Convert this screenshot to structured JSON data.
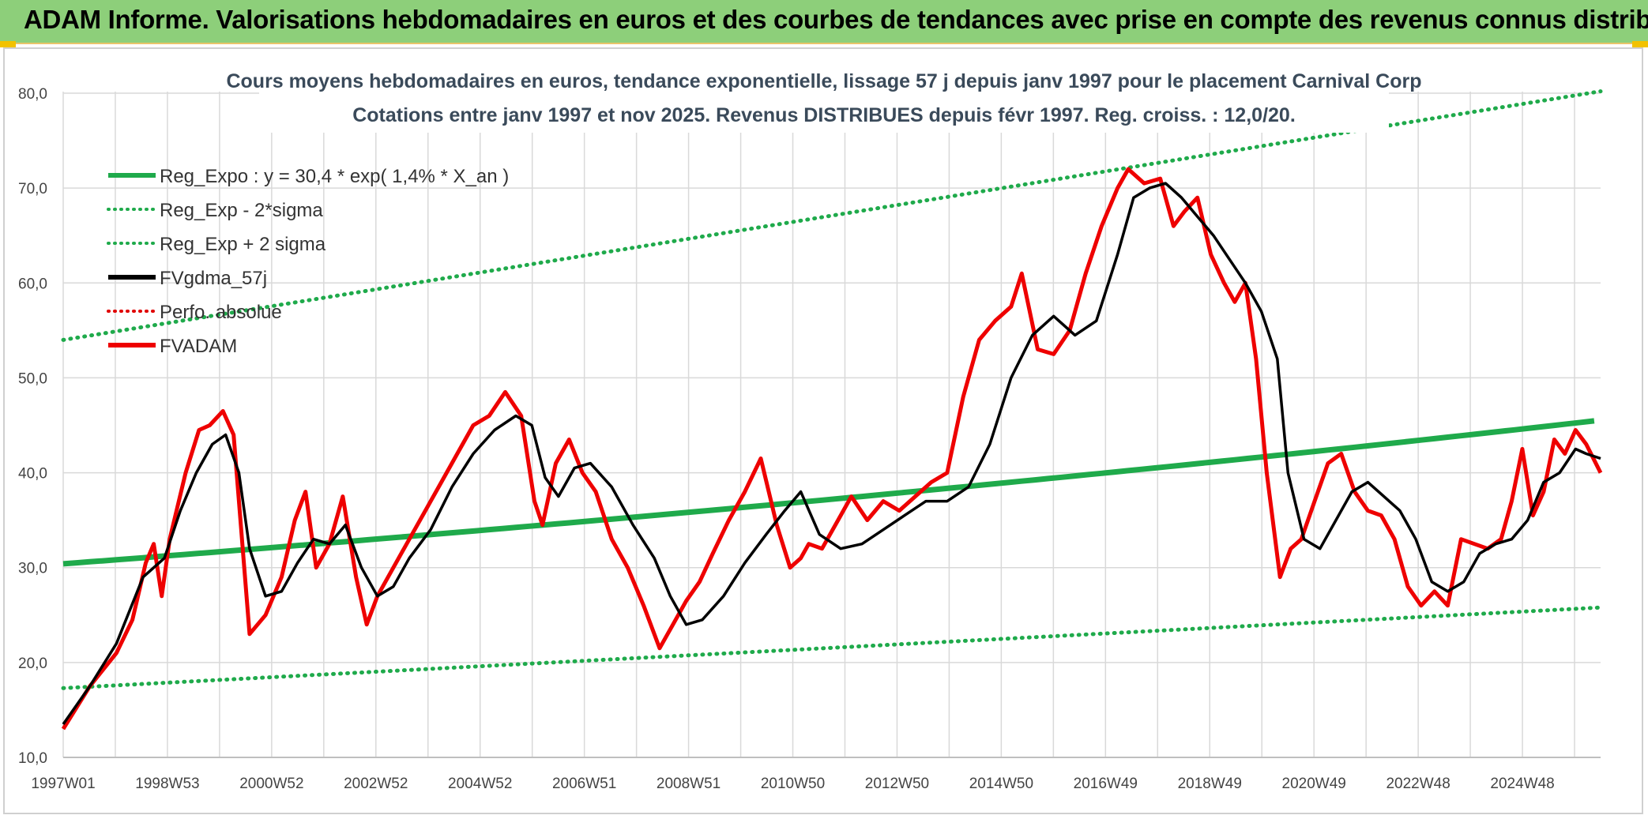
{
  "header": {
    "title": "ADAM Informe. Valorisations hebdomadaires en euros et des courbes de tendances avec prise en compte des revenus connus distribués"
  },
  "colors": {
    "reg_expo": "#1faa4b",
    "reg_band": "#1faa4b",
    "fvgdma": "#000000",
    "perfo": "#e00000",
    "fvadam": "#ee0000",
    "banner": "#8dcf7a"
  },
  "chart_data": {
    "type": "line",
    "title_lines": [
      "Cours moyens hebdomadaires en euros, tendance exponentielle, lissage 57 j depuis janv 1997 pour le placement Carnival Corp",
      "Cotations entre janv 1997 et nov 2025. Revenus DISTRIBUES depuis févr 1997. Reg. croiss. : 12,0/20."
    ],
    "ylim": [
      10,
      80
    ],
    "xlim": [
      1997.0,
      2025.87
    ],
    "y_ticks": [
      "10,0",
      "20,0",
      "30,0",
      "40,0",
      "50,0",
      "60,0",
      "70,0",
      "80,0"
    ],
    "x_ticks": [
      "1997W01",
      "1998W53",
      "2000W52",
      "2002W52",
      "2004W52",
      "2006W51",
      "2008W51",
      "2010W50",
      "2012W50",
      "2014W50",
      "2016W49",
      "2018W49",
      "2020W49",
      "2022W48",
      "2024W48"
    ],
    "grid": true,
    "legend": {
      "position": "top-left",
      "entries": [
        {
          "name": "Reg_Expo : y = 30,4 * exp( 1,4% *  X_an )",
          "style": "solid",
          "color": "#1faa4b"
        },
        {
          "name": "Reg_Exp - 2*sigma",
          "style": "dotted",
          "color": "#1faa4b"
        },
        {
          "name": "Reg_Exp + 2 sigma",
          "style": "dotted",
          "color": "#1faa4b"
        },
        {
          "name": "FVgdma_57j",
          "style": "solid",
          "color": "#000000"
        },
        {
          "name": "Perfo. absolue",
          "style": "dotted",
          "color": "#e00000"
        },
        {
          "name": "FVADAM",
          "style": "solid",
          "color": "#ee0000"
        }
      ]
    },
    "regression": {
      "a": 30.4,
      "rate": 0.014,
      "x0": 1997.0
    },
    "upper_band": [
      [
        1997.0,
        54.0
      ],
      [
        2025.87,
        80.2
      ]
    ],
    "lower_band": [
      [
        1997.0,
        17.3
      ],
      [
        2025.87,
        25.8
      ]
    ],
    "series": [
      {
        "name": "FVADAM",
        "x": [
          1997.0,
          1997.5,
          1998.0,
          1998.3,
          1998.55,
          1998.7,
          1998.85,
          1999.0,
          1999.3,
          1999.55,
          1999.75,
          2000.0,
          2000.2,
          2000.5,
          2000.8,
          2001.1,
          2001.35,
          2001.55,
          2001.75,
          2002.0,
          2002.25,
          2002.5,
          2002.7,
          2002.9,
          2003.2,
          2003.5,
          2003.8,
          2004.1,
          2004.4,
          2004.7,
          2005.0,
          2005.3,
          2005.6,
          2005.85,
          2006.0,
          2006.25,
          2006.5,
          2006.75,
          2007.0,
          2007.3,
          2007.6,
          2007.9,
          2008.2,
          2008.45,
          2008.7,
          2008.95,
          2009.2,
          2009.5,
          2009.8,
          2010.1,
          2010.4,
          2010.65,
          2010.85,
          2011.0,
          2011.25,
          2011.55,
          2011.8,
          2012.1,
          2012.4,
          2012.7,
          2013.0,
          2013.3,
          2013.6,
          2013.9,
          2014.2,
          2014.5,
          2014.8,
          2015.0,
          2015.3,
          2015.6,
          2015.9,
          2016.2,
          2016.5,
          2016.8,
          2017.0,
          2017.3,
          2017.6,
          2017.85,
          2018.05,
          2018.3,
          2018.55,
          2018.8,
          2019.0,
          2019.2,
          2019.4,
          2019.6,
          2019.85,
          2020.05,
          2020.25,
          2020.5,
          2020.75,
          2021.0,
          2021.25,
          2021.5,
          2021.75,
          2022.0,
          2022.25,
          2022.5,
          2022.75,
          2023.0,
          2023.25,
          2023.5,
          2023.75,
          2024.0,
          2024.2,
          2024.4,
          2024.6,
          2024.8,
          2025.0,
          2025.2,
          2025.4,
          2025.6,
          2025.87
        ],
        "values": [
          13.0,
          17.5,
          21.0,
          24.5,
          30.5,
          32.5,
          27.0,
          33.0,
          40.0,
          44.5,
          45.0,
          46.5,
          44.0,
          23.0,
          25.0,
          29.0,
          35.0,
          38.0,
          30.0,
          32.5,
          37.5,
          29.0,
          24.0,
          27.0,
          30.0,
          33.0,
          36.0,
          39.0,
          42.0,
          45.0,
          46.0,
          48.5,
          46.0,
          37.0,
          34.5,
          41.0,
          43.5,
          40.0,
          38.0,
          33.0,
          30.0,
          26.0,
          21.5,
          24.0,
          26.5,
          28.5,
          31.5,
          35.0,
          38.0,
          41.5,
          34.5,
          30.0,
          31.0,
          32.5,
          32.0,
          35.0,
          37.5,
          35.0,
          37.0,
          36.0,
          37.5,
          39.0,
          40.0,
          48.0,
          54.0,
          56.0,
          57.5,
          61.0,
          53.0,
          52.5,
          55.0,
          61.0,
          66.0,
          70.0,
          72.0,
          70.5,
          71.0,
          66.0,
          67.5,
          69.0,
          63.0,
          60.0,
          58.0,
          60.0,
          52.0,
          40.0,
          29.0,
          32.0,
          33.0,
          37.0,
          41.0,
          42.0,
          38.0,
          36.0,
          35.5,
          33.0,
          28.0,
          26.0,
          27.5,
          26.0,
          33.0,
          32.5,
          32.0,
          33.0,
          37.0,
          42.5,
          35.5,
          38.0,
          43.5,
          42.0,
          44.5,
          43.0,
          40.0
        ]
      },
      {
        "name": "FVgdma_57j",
        "x": [
          1997.0,
          1997.5,
          1998.0,
          1998.5,
          1998.9,
          1999.2,
          1999.5,
          1999.8,
          2000.05,
          2000.3,
          2000.5,
          2000.8,
          2001.1,
          2001.4,
          2001.7,
          2002.0,
          2002.3,
          2002.6,
          2002.9,
          2003.2,
          2003.5,
          2003.9,
          2004.3,
          2004.7,
          2005.1,
          2005.5,
          2005.8,
          2006.05,
          2006.3,
          2006.6,
          2006.9,
          2007.3,
          2007.7,
          2008.1,
          2008.4,
          2008.7,
          2009.0,
          2009.4,
          2009.8,
          2010.2,
          2010.55,
          2010.85,
          2011.2,
          2011.6,
          2012.0,
          2012.4,
          2012.8,
          2013.2,
          2013.6,
          2014.0,
          2014.4,
          2014.8,
          2015.2,
          2015.6,
          2016.0,
          2016.4,
          2016.8,
          2017.1,
          2017.4,
          2017.7,
          2018.0,
          2018.3,
          2018.6,
          2018.9,
          2019.2,
          2019.5,
          2019.8,
          2020.0,
          2020.3,
          2020.6,
          2020.9,
          2021.2,
          2021.5,
          2021.8,
          2022.1,
          2022.4,
          2022.7,
          2023.0,
          2023.3,
          2023.6,
          2023.9,
          2024.2,
          2024.5,
          2024.8,
          2025.1,
          2025.4,
          2025.6,
          2025.87
        ],
        "values": [
          13.5,
          17.5,
          22.0,
          29.0,
          31.0,
          36.0,
          40.0,
          43.0,
          44.0,
          40.0,
          32.0,
          27.0,
          27.5,
          30.5,
          33.0,
          32.5,
          34.5,
          30.0,
          27.0,
          28.0,
          31.0,
          34.0,
          38.5,
          42.0,
          44.5,
          46.0,
          45.0,
          39.5,
          37.5,
          40.5,
          41.0,
          38.5,
          34.5,
          31.0,
          27.0,
          24.0,
          24.5,
          27.0,
          30.5,
          33.5,
          36.0,
          38.0,
          33.5,
          32.0,
          32.5,
          34.0,
          35.5,
          37.0,
          37.0,
          38.5,
          43.0,
          50.0,
          54.5,
          56.5,
          54.5,
          56.0,
          63.0,
          69.0,
          70.0,
          70.5,
          69.0,
          67.0,
          65.0,
          62.5,
          60.0,
          57.0,
          52.0,
          40.0,
          33.0,
          32.0,
          35.0,
          38.0,
          39.0,
          37.5,
          36.0,
          33.0,
          28.5,
          27.5,
          28.5,
          31.5,
          32.5,
          33.0,
          35.0,
          39.0,
          40.0,
          42.5,
          42.0,
          41.5
        ]
      }
    ]
  }
}
